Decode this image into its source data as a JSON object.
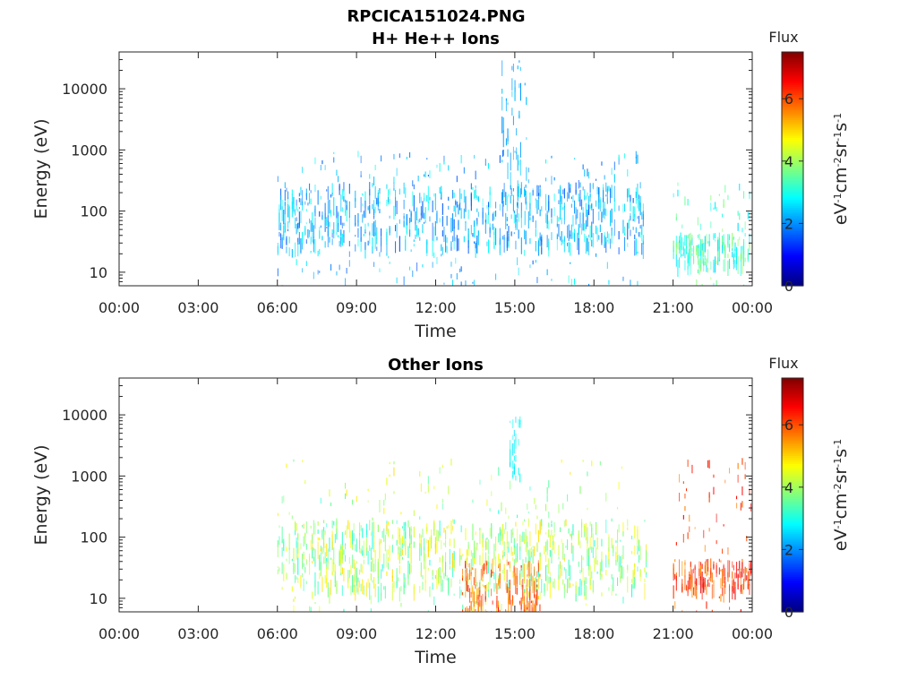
{
  "figure": {
    "title_line1": "RPCICA151024.PNG"
  },
  "chart_data": [
    {
      "type": "heatmap",
      "title": "H+ He++ Ions",
      "xlabel": "Time",
      "ylabel": "Energy (eV)",
      "x_ticks": [
        "00:00",
        "03:00",
        "06:00",
        "09:00",
        "12:00",
        "15:00",
        "18:00",
        "21:00",
        "00:00"
      ],
      "x_range_hours": [
        0,
        24
      ],
      "y_scale": "log",
      "y_ticks": [
        "10",
        "100",
        "1000",
        "10000"
      ],
      "y_tick_values": [
        10,
        100,
        1000,
        10000
      ],
      "y_range": [
        6,
        40000
      ],
      "colorbar": {
        "label": "Flux",
        "unit": "eV-1cm-2sr-1s-1",
        "ticks": [
          "0",
          "2",
          "4",
          "6"
        ],
        "tick_values": [
          0,
          2,
          4,
          6
        ],
        "range": [
          0,
          7.5
        ],
        "colormap": "jet"
      },
      "data_segments": [
        {
          "start_hour": 6.0,
          "end_hour": 20.0
        },
        {
          "start_hour": 21.0,
          "end_hour": 24.0
        }
      ],
      "features": [
        {
          "start_hour": 6.0,
          "end_hour": 20.0,
          "energy_low": 6,
          "energy_high": 1000,
          "dominant_energy": [
            30,
            300
          ],
          "level": [
            1.5,
            3.0
          ]
        },
        {
          "start_hour": 14.5,
          "end_hour": 15.5,
          "energy_low": 100,
          "energy_high": 30000,
          "level": [
            2.0,
            2.5
          ]
        },
        {
          "start_hour": 21.0,
          "end_hour": 24.0,
          "energy_low": 6,
          "energy_high": 300,
          "dominant_energy": [
            15,
            45
          ],
          "level": [
            2.5,
            4.0
          ]
        }
      ]
    },
    {
      "type": "heatmap",
      "title": "Other Ions",
      "xlabel": "Time",
      "ylabel": "Energy (eV)",
      "x_ticks": [
        "00:00",
        "03:00",
        "06:00",
        "09:00",
        "12:00",
        "15:00",
        "18:00",
        "21:00",
        "00:00"
      ],
      "x_range_hours": [
        0,
        24
      ],
      "y_scale": "log",
      "y_ticks": [
        "10",
        "100",
        "1000",
        "10000"
      ],
      "y_tick_values": [
        10,
        100,
        1000,
        10000
      ],
      "y_range": [
        6,
        40000
      ],
      "colorbar": {
        "label": "Flux",
        "unit": "eV-1cm-2sr-1s-1",
        "ticks": [
          "0",
          "2",
          "4",
          "6"
        ],
        "tick_values": [
          0,
          2,
          4,
          6
        ],
        "range": [
          0,
          7.5
        ],
        "colormap": "jet"
      },
      "data_segments": [
        {
          "start_hour": 6.0,
          "end_hour": 20.0
        },
        {
          "start_hour": 21.0,
          "end_hour": 24.0
        }
      ],
      "features": [
        {
          "start_hour": 6.0,
          "end_hour": 20.0,
          "energy_low": 6,
          "energy_high": 2000,
          "dominant_energy": [
            15,
            200
          ],
          "level": [
            3.0,
            5.0
          ]
        },
        {
          "start_hour": 13.0,
          "end_hour": 16.0,
          "energy_low": 6,
          "energy_high": 45,
          "level": [
            5.0,
            6.5
          ]
        },
        {
          "start_hour": 14.8,
          "end_hour": 15.2,
          "energy_low": 1000,
          "energy_high": 10000,
          "level": [
            2.5,
            3.0
          ]
        },
        {
          "start_hour": 21.0,
          "end_hour": 24.0,
          "energy_low": 6,
          "energy_high": 2000,
          "dominant_energy": [
            15,
            45
          ],
          "level": [
            5.5,
            6.8
          ]
        }
      ]
    }
  ]
}
